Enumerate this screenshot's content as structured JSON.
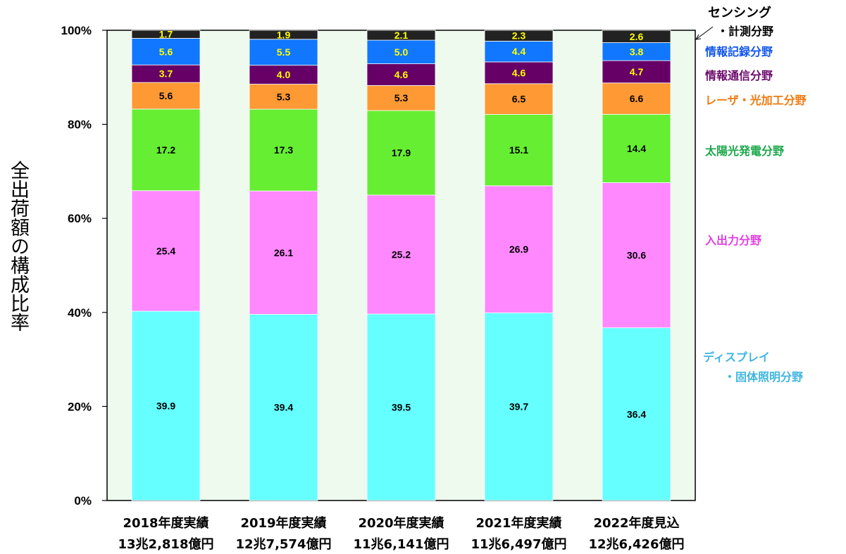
{
  "chart_data": {
    "type": "bar",
    "stacked": true,
    "normalized_percent": true,
    "ylabel": "全出荷額の構成比率",
    "ylim": [
      0,
      100
    ],
    "y_ticks": [
      "0%",
      "20%",
      "40%",
      "60%",
      "80%",
      "100%"
    ],
    "categories": [
      {
        "label": "2018年度実績",
        "total": "13兆2,818億円"
      },
      {
        "label": "2019年度実績",
        "total": "12兆7,574億円"
      },
      {
        "label": "2020年度実績",
        "total": "11兆6,141億円"
      },
      {
        "label": "2021年度実績",
        "total": "11兆6,497億円"
      },
      {
        "label": "2022年度見込",
        "total": "12兆6,426億円"
      }
    ],
    "series": [
      {
        "name": [
          "ディスプレイ",
          "・固体照明分野"
        ],
        "color": "#66FFFF",
        "label_color": "#3FB5E0",
        "value_color": "#000000",
        "values": [
          "39.9",
          "39.4",
          "39.5",
          "39.7",
          "36.4"
        ]
      },
      {
        "name": [
          "入出力分野"
        ],
        "color": "#FF88FF",
        "label_color": "#E040E0",
        "value_color": "#000000",
        "values": [
          "25.4",
          "26.1",
          "25.2",
          "26.9",
          "30.6"
        ]
      },
      {
        "name": [
          "太陽光発電分野"
        ],
        "color": "#66EE33",
        "label_color": "#1AA84A",
        "value_color": "#000000",
        "values": [
          "17.2",
          "17.3",
          "17.9",
          "15.1",
          "14.4"
        ]
      },
      {
        "name": [
          "レーザ・光加工分野"
        ],
        "color": "#FF9933",
        "label_color": "#F07A10",
        "value_color": "#000000",
        "values": [
          "5.6",
          "5.3",
          "5.3",
          "6.5",
          "6.6"
        ]
      },
      {
        "name": [
          "情報通信分野"
        ],
        "color": "#660066",
        "label_color": "#6B0A6B",
        "value_color": "#FFFF00",
        "values": [
          "3.7",
          "4.0",
          "4.6",
          "4.6",
          "4.7"
        ]
      },
      {
        "name": [
          "情報記録分野"
        ],
        "color": "#1177FF",
        "label_color": "#1155EE",
        "value_color": "#FFFF00",
        "values": [
          "5.6",
          "5.5",
          "5.0",
          "4.4",
          "3.8"
        ]
      },
      {
        "name": [
          "センシング",
          "・計測分野"
        ],
        "color": "#222222",
        "label_color": "#000000",
        "value_color": "#FFFF00",
        "values": [
          "1.7",
          "1.9",
          "2.1",
          "2.3",
          "2.6"
        ]
      }
    ],
    "plot_background": "#EEFAEE",
    "grid": false,
    "legend": "right, inline labels"
  }
}
